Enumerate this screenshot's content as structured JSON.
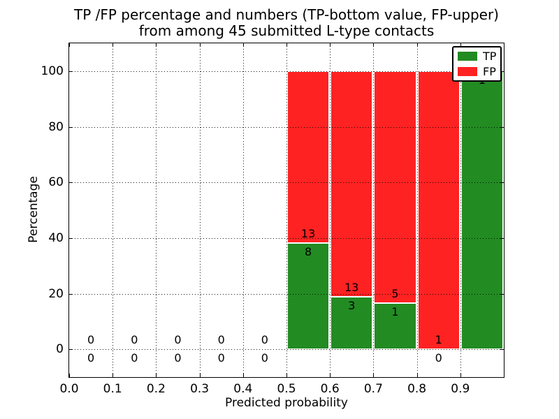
{
  "chart_data": {
    "type": "bar",
    "stacked": true,
    "title_lines": [
      "TP /FP percentage and numbers (TP-bottom value, FP-upper)",
      "from among 45 submitted L-type contacts"
    ],
    "xlabel": "Predicted probability",
    "ylabel": "Percentage",
    "xlim": [
      0.0,
      1.0
    ],
    "ylim": [
      -10,
      110
    ],
    "x_ticks": [
      0.0,
      0.1,
      0.2,
      0.3,
      0.4,
      0.5,
      0.6,
      0.7,
      0.8,
      0.9
    ],
    "x_tick_labels": [
      "0.0",
      "0.1",
      "0.2",
      "0.3",
      "0.4",
      "0.5",
      "0.6",
      "0.7",
      "0.8",
      "0.9"
    ],
    "y_ticks": [
      0,
      20,
      40,
      60,
      80,
      100
    ],
    "y_tick_labels": [
      "0",
      "20",
      "40",
      "60",
      "80",
      "100"
    ],
    "grid": "dotted",
    "legend_position": "upper right",
    "total_contacts": 45,
    "series": [
      {
        "name": "TP",
        "color": "#228B22"
      },
      {
        "name": "FP",
        "color": "#FF2222"
      }
    ],
    "bins": [
      {
        "range": [
          0.0,
          0.1
        ],
        "tp": 0,
        "fp": 0,
        "tp_percent": null
      },
      {
        "range": [
          0.1,
          0.2
        ],
        "tp": 0,
        "fp": 0,
        "tp_percent": null
      },
      {
        "range": [
          0.2,
          0.3
        ],
        "tp": 0,
        "fp": 0,
        "tp_percent": null
      },
      {
        "range": [
          0.3,
          0.4
        ],
        "tp": 0,
        "fp": 0,
        "tp_percent": null
      },
      {
        "range": [
          0.4,
          0.5
        ],
        "tp": 0,
        "fp": 0,
        "tp_percent": null
      },
      {
        "range": [
          0.5,
          0.6
        ],
        "tp": 8,
        "fp": 13,
        "tp_percent": 38.1
      },
      {
        "range": [
          0.6,
          0.7
        ],
        "tp": 3,
        "fp": 13,
        "tp_percent": 18.75
      },
      {
        "range": [
          0.7,
          0.8
        ],
        "tp": 1,
        "fp": 5,
        "tp_percent": 16.67
      },
      {
        "range": [
          0.8,
          0.9
        ],
        "tp": 0,
        "fp": 1,
        "tp_percent": 0
      },
      {
        "range": [
          0.9,
          1.0
        ],
        "tp": 1,
        "fp": 0,
        "tp_percent": 100
      }
    ]
  }
}
